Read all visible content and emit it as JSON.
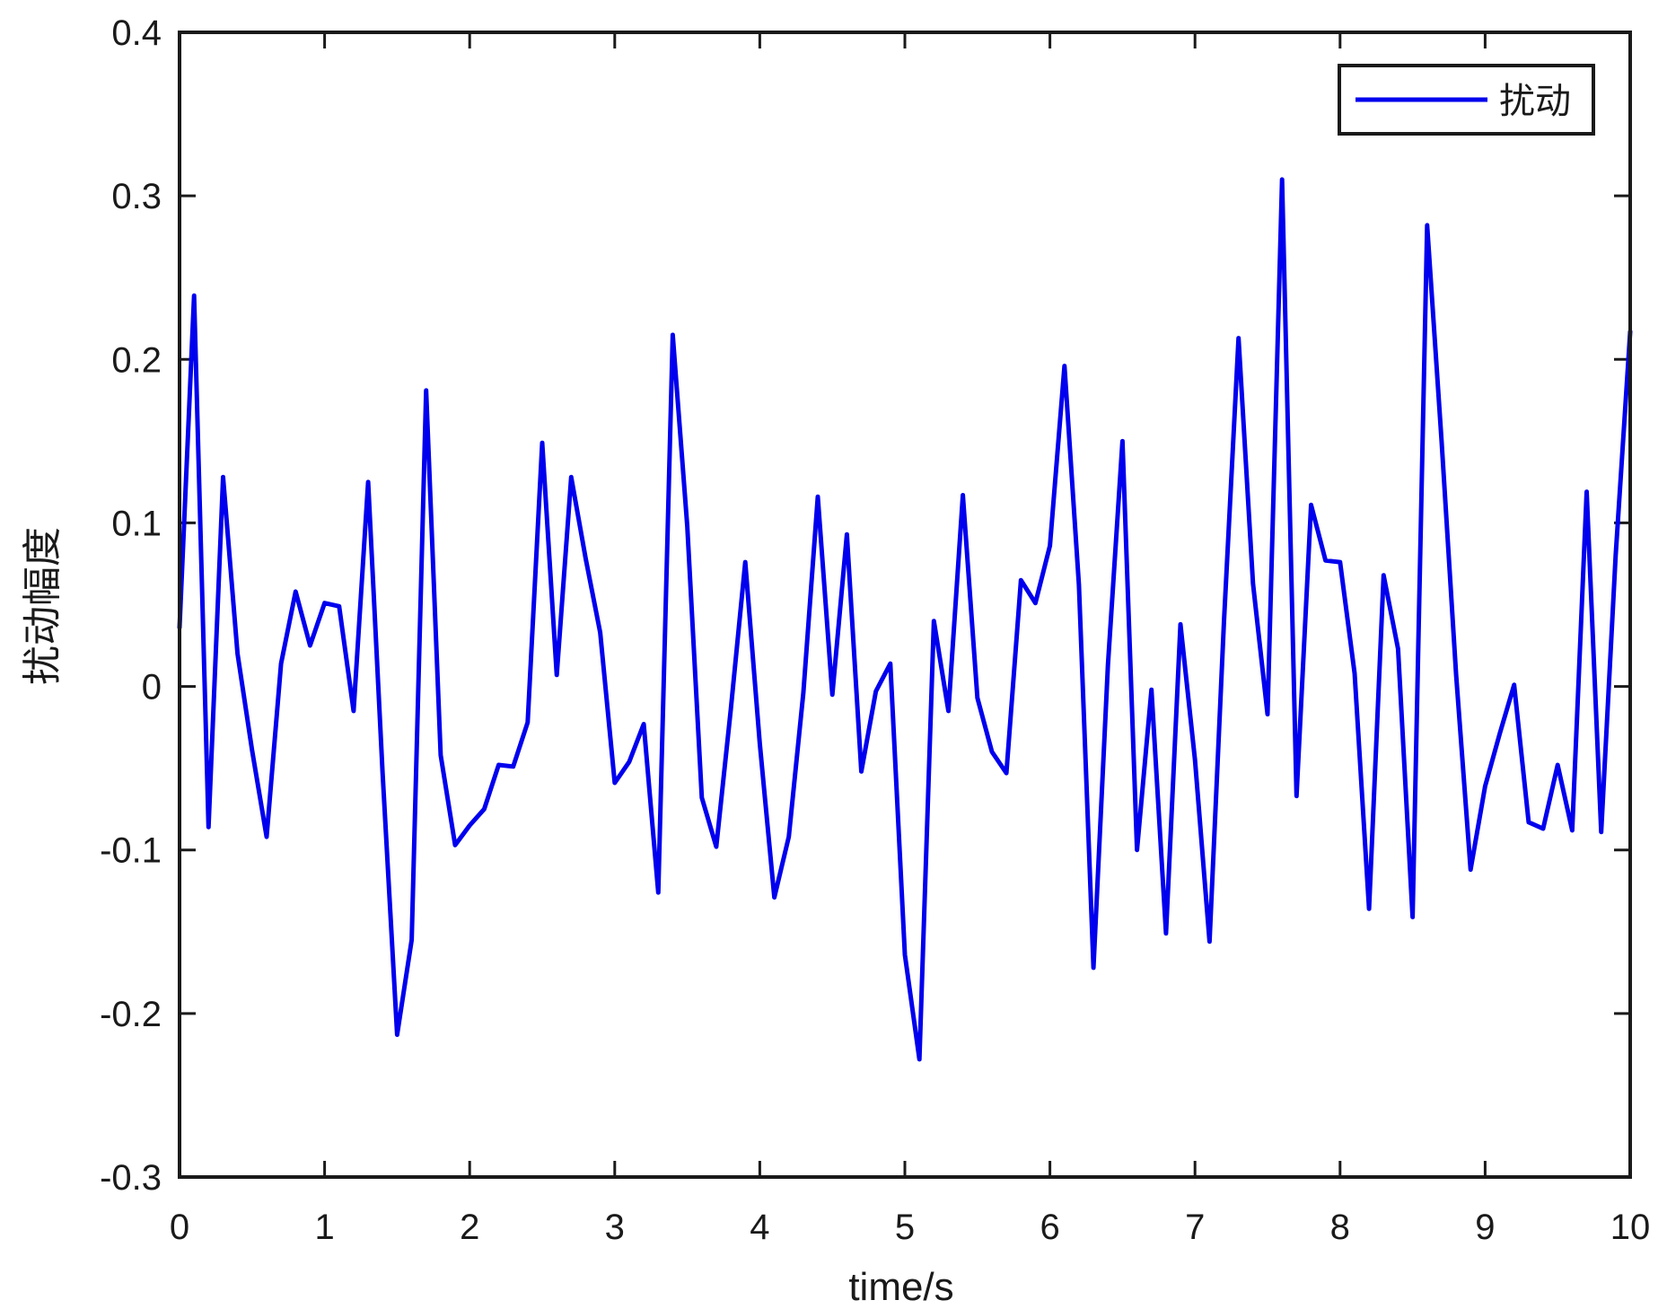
{
  "chart_data": {
    "type": "line",
    "xlabel": "time/s",
    "ylabel": "扰动幅度",
    "xlim": [
      0,
      10
    ],
    "ylim": [
      -0.3,
      0.4
    ],
    "xticks": [
      0,
      1,
      2,
      3,
      4,
      5,
      6,
      7,
      8,
      9,
      10
    ],
    "xtick_labels": [
      "0",
      "1",
      "2",
      "3",
      "4",
      "5",
      "6",
      "7",
      "8",
      "9",
      "10"
    ],
    "yticks": [
      -0.3,
      -0.2,
      -0.1,
      0,
      0.1,
      0.2,
      0.3,
      0.4
    ],
    "ytick_labels": [
      "-0.3",
      "-0.2",
      "-0.1",
      "0",
      "0.1",
      "0.2",
      "0.3",
      "0.4"
    ],
    "grid": false,
    "legend_position": "top-right",
    "series": [
      {
        "name": "扰动",
        "color": "#0000ee",
        "x": [
          0,
          0.1,
          0.2,
          0.3,
          0.4,
          0.5,
          0.6,
          0.7,
          0.8,
          0.9,
          1.0,
          1.1,
          1.2,
          1.3,
          1.4,
          1.5,
          1.6,
          1.7,
          1.8,
          1.9,
          2.0,
          2.1,
          2.2,
          2.3,
          2.4,
          2.5,
          2.6,
          2.7,
          2.8,
          2.9,
          3.0,
          3.1,
          3.2,
          3.3,
          3.4,
          3.5,
          3.6,
          3.7,
          3.8,
          3.9,
          4.0,
          4.1,
          4.2,
          4.3,
          4.4,
          4.5,
          4.6,
          4.7,
          4.8,
          4.9,
          5.0,
          5.1,
          5.2,
          5.3,
          5.4,
          5.5,
          5.6,
          5.7,
          5.8,
          5.9,
          6.0,
          6.1,
          6.2,
          6.3,
          6.4,
          6.5,
          6.6,
          6.7,
          6.8,
          6.9,
          7.0,
          7.1,
          7.2,
          7.3,
          7.4,
          7.5,
          7.6,
          7.7,
          7.8,
          7.9,
          8.0,
          8.1,
          8.2,
          8.3,
          8.4,
          8.5,
          8.6,
          8.7,
          8.8,
          8.9,
          9.0,
          9.1,
          9.2,
          9.3,
          9.4,
          9.5,
          9.6,
          9.7,
          9.8,
          9.9,
          10.0
        ],
        "y": [
          0.036,
          0.239,
          -0.086,
          0.128,
          0.02,
          -0.039,
          -0.092,
          0.014,
          0.058,
          0.025,
          0.051,
          0.049,
          -0.015,
          0.125,
          -0.053,
          -0.213,
          -0.155,
          0.181,
          -0.042,
          -0.097,
          -0.085,
          -0.075,
          -0.048,
          -0.049,
          -0.022,
          0.149,
          0.007,
          0.128,
          0.078,
          0.033,
          -0.059,
          -0.046,
          -0.023,
          -0.126,
          0.215,
          0.098,
          -0.068,
          -0.098,
          -0.014,
          0.076,
          -0.035,
          -0.129,
          -0.092,
          -0.004,
          0.116,
          -0.005,
          0.093,
          -0.052,
          -0.003,
          0.014,
          -0.164,
          -0.228,
          0.04,
          -0.015,
          0.117,
          -0.007,
          -0.04,
          -0.053,
          0.065,
          0.051,
          0.086,
          0.196,
          0.062,
          -0.172,
          0.013,
          0.15,
          -0.1,
          -0.002,
          -0.151,
          0.038,
          -0.045,
          -0.156,
          0.04,
          0.213,
          0.063,
          -0.017,
          0.31,
          -0.067,
          0.111,
          0.077,
          0.076,
          0.008,
          -0.136,
          0.068,
          0.023,
          -0.141,
          0.282,
          0.15,
          0.007,
          -0.112,
          -0.061,
          -0.029,
          0.001,
          -0.083,
          -0.087,
          -0.048,
          -0.088,
          0.119,
          -0.089,
          0.08,
          0.217
        ]
      }
    ]
  }
}
